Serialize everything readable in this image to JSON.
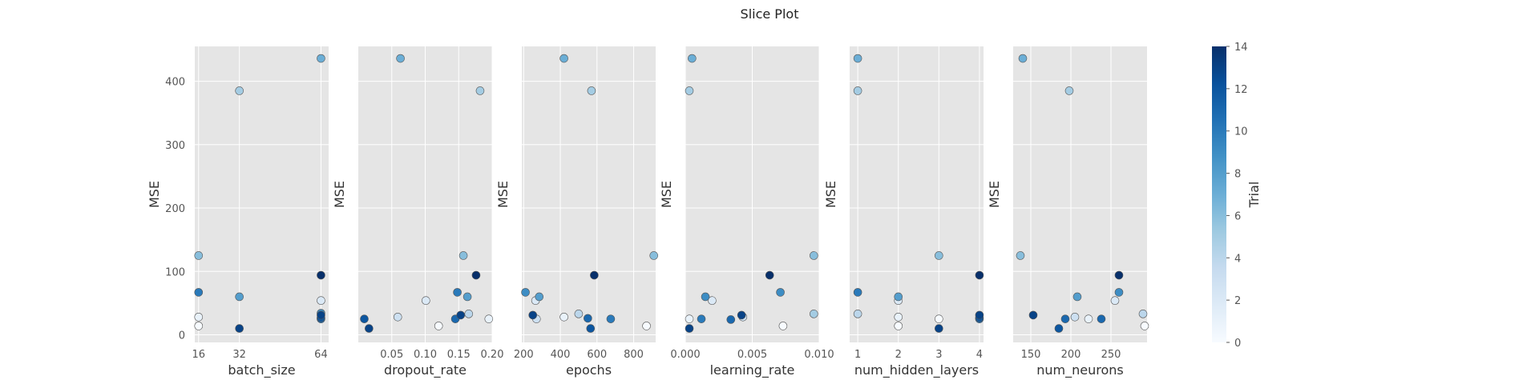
{
  "chart_data": {
    "type": "scatter",
    "title": "Slice Plot",
    "ylabel": "MSE",
    "ylim": [
      -12,
      455
    ],
    "yticks": [
      0,
      100,
      200,
      300,
      400
    ],
    "grid": true,
    "colorbar": {
      "label": "Trial",
      "range": [
        0,
        14
      ],
      "ticks": [
        0,
        2,
        4,
        6,
        8,
        10,
        12,
        14
      ],
      "colormap": [
        "#f7fbff",
        "#deebf7",
        "#c6dbef",
        "#9ecae1",
        "#6baed6",
        "#4292c6",
        "#2171b5",
        "#08519c",
        "#08306b"
      ]
    },
    "panels": [
      {
        "xlabel": "batch_size",
        "xlim": [
          14.5,
          67
        ],
        "xticks": [
          16,
          32,
          64
        ],
        "xticklabels": [
          "16",
          "32",
          "64"
        ],
        "points": [
          {
            "x": 16,
            "y": 14,
            "trial": 0
          },
          {
            "x": 16,
            "y": 28,
            "trial": 1
          },
          {
            "x": 64,
            "y": 54,
            "trial": 2
          },
          {
            "x": 32,
            "y": 385,
            "trial": 5
          },
          {
            "x": 16,
            "y": 125,
            "trial": 6
          },
          {
            "x": 64,
            "y": 436,
            "trial": 7
          },
          {
            "x": 32,
            "y": 60,
            "trial": 8
          },
          {
            "x": 64,
            "y": 34,
            "trial": 9
          },
          {
            "x": 16,
            "y": 67,
            "trial": 10
          },
          {
            "x": 64,
            "y": 25,
            "trial": 11
          },
          {
            "x": 64,
            "y": 27,
            "trial": 12
          },
          {
            "x": 32,
            "y": 10,
            "trial": 13
          },
          {
            "x": 64,
            "y": 31,
            "trial": 13
          },
          {
            "x": 64,
            "y": 94,
            "trial": 14
          }
        ]
      },
      {
        "xlabel": "dropout_rate",
        "xlim": [
          0.0,
          0.2
        ],
        "xticks": [
          0.05,
          0.1,
          0.15,
          0.2
        ],
        "xticklabels": [
          "0.05",
          "0.10",
          "0.15",
          "0.20"
        ],
        "points": [
          {
            "x": 0.12,
            "y": 14,
            "trial": 0
          },
          {
            "x": 0.195,
            "y": 25,
            "trial": 1
          },
          {
            "x": 0.101,
            "y": 54,
            "trial": 2
          },
          {
            "x": 0.059,
            "y": 28,
            "trial": 3
          },
          {
            "x": 0.165,
            "y": 33,
            "trial": 4
          },
          {
            "x": 0.182,
            "y": 385,
            "trial": 5
          },
          {
            "x": 0.157,
            "y": 125,
            "trial": 6
          },
          {
            "x": 0.063,
            "y": 436,
            "trial": 7
          },
          {
            "x": 0.163,
            "y": 60,
            "trial": 8
          },
          {
            "x": 0.148,
            "y": 67,
            "trial": 10
          },
          {
            "x": 0.145,
            "y": 25,
            "trial": 11
          },
          {
            "x": 0.009,
            "y": 25,
            "trial": 12
          },
          {
            "x": 0.016,
            "y": 10,
            "trial": 13
          },
          {
            "x": 0.153,
            "y": 31,
            "trial": 13
          },
          {
            "x": 0.176,
            "y": 94,
            "trial": 14
          }
        ]
      },
      {
        "xlabel": "epochs",
        "xlim": [
          190,
          920
        ],
        "xticks": [
          200,
          400,
          600,
          800
        ],
        "xticklabels": [
          "200",
          "400",
          "600",
          "800"
        ],
        "points": [
          {
            "x": 870,
            "y": 14,
            "trial": 0
          },
          {
            "x": 420,
            "y": 28,
            "trial": 1
          },
          {
            "x": 265,
            "y": 54,
            "trial": 2
          },
          {
            "x": 270,
            "y": 25,
            "trial": 3
          },
          {
            "x": 500,
            "y": 33,
            "trial": 4
          },
          {
            "x": 570,
            "y": 385,
            "trial": 5
          },
          {
            "x": 910,
            "y": 125,
            "trial": 6
          },
          {
            "x": 420,
            "y": 436,
            "trial": 7
          },
          {
            "x": 285,
            "y": 60,
            "trial": 8
          },
          {
            "x": 210,
            "y": 67,
            "trial": 9
          },
          {
            "x": 675,
            "y": 25,
            "trial": 10
          },
          {
            "x": 550,
            "y": 26,
            "trial": 11
          },
          {
            "x": 565,
            "y": 10,
            "trial": 12
          },
          {
            "x": 250,
            "y": 31,
            "trial": 13
          },
          {
            "x": 585,
            "y": 94,
            "trial": 14
          }
        ]
      },
      {
        "xlabel": "learning_rate",
        "xlim": [
          0.0,
          0.01
        ],
        "xticks": [
          0.0,
          0.005,
          0.01
        ],
        "xticklabels": [
          "0.000",
          "0.005",
          "0.010"
        ],
        "points": [
          {
            "x": 0.0073,
            "y": 14,
            "trial": 0
          },
          {
            "x": 0.0003,
            "y": 25,
            "trial": 1
          },
          {
            "x": 0.002,
            "y": 54,
            "trial": 2
          },
          {
            "x": 0.0043,
            "y": 28,
            "trial": 3
          },
          {
            "x": 0.0096,
            "y": 33,
            "trial": 5
          },
          {
            "x": 0.0003,
            "y": 385,
            "trial": 5
          },
          {
            "x": 0.0096,
            "y": 125,
            "trial": 6
          },
          {
            "x": 0.0005,
            "y": 436,
            "trial": 7
          },
          {
            "x": 0.0015,
            "y": 60,
            "trial": 9
          },
          {
            "x": 0.0071,
            "y": 67,
            "trial": 9
          },
          {
            "x": 0.0012,
            "y": 25,
            "trial": 10
          },
          {
            "x": 0.0034,
            "y": 24,
            "trial": 11
          },
          {
            "x": 0.0003,
            "y": 10,
            "trial": 13
          },
          {
            "x": 0.0042,
            "y": 31,
            "trial": 13
          },
          {
            "x": 0.0063,
            "y": 94,
            "trial": 14
          }
        ]
      },
      {
        "xlabel": "num_hidden_layers",
        "xlim": [
          0.8,
          4.1
        ],
        "xticks": [
          1,
          2,
          3,
          4
        ],
        "xticklabels": [
          "1",
          "2",
          "3",
          "4"
        ],
        "points": [
          {
            "x": 2,
            "y": 14,
            "trial": 0
          },
          {
            "x": 3,
            "y": 25,
            "trial": 0
          },
          {
            "x": 2,
            "y": 28,
            "trial": 1
          },
          {
            "x": 2,
            "y": 54,
            "trial": 2
          },
          {
            "x": 1,
            "y": 33,
            "trial": 4
          },
          {
            "x": 1,
            "y": 385,
            "trial": 5
          },
          {
            "x": 3,
            "y": 125,
            "trial": 6
          },
          {
            "x": 1,
            "y": 436,
            "trial": 7
          },
          {
            "x": 2,
            "y": 60,
            "trial": 8
          },
          {
            "x": 1,
            "y": 67,
            "trial": 10
          },
          {
            "x": 4,
            "y": 25,
            "trial": 11
          },
          {
            "x": 4,
            "y": 27,
            "trial": 12
          },
          {
            "x": 3,
            "y": 10,
            "trial": 13
          },
          {
            "x": 4,
            "y": 31,
            "trial": 13
          },
          {
            "x": 4,
            "y": 94,
            "trial": 14
          }
        ]
      },
      {
        "xlabel": "num_neurons",
        "xlim": [
          128,
          295
        ],
        "xticks": [
          150,
          200,
          250
        ],
        "xticklabels": [
          "150",
          "200",
          "250"
        ],
        "points": [
          {
            "x": 292,
            "y": 14,
            "trial": 0
          },
          {
            "x": 222,
            "y": 25,
            "trial": 1
          },
          {
            "x": 255,
            "y": 54,
            "trial": 2
          },
          {
            "x": 205,
            "y": 28,
            "trial": 3
          },
          {
            "x": 290,
            "y": 33,
            "trial": 4
          },
          {
            "x": 198,
            "y": 385,
            "trial": 5
          },
          {
            "x": 137,
            "y": 125,
            "trial": 6
          },
          {
            "x": 140,
            "y": 436,
            "trial": 7
          },
          {
            "x": 208,
            "y": 60,
            "trial": 8
          },
          {
            "x": 260,
            "y": 67,
            "trial": 9
          },
          {
            "x": 193,
            "y": 25,
            "trial": 11
          },
          {
            "x": 238,
            "y": 25,
            "trial": 11
          },
          {
            "x": 185,
            "y": 10,
            "trial": 12
          },
          {
            "x": 153,
            "y": 31,
            "trial": 13
          },
          {
            "x": 260,
            "y": 94,
            "trial": 14
          }
        ]
      }
    ]
  }
}
